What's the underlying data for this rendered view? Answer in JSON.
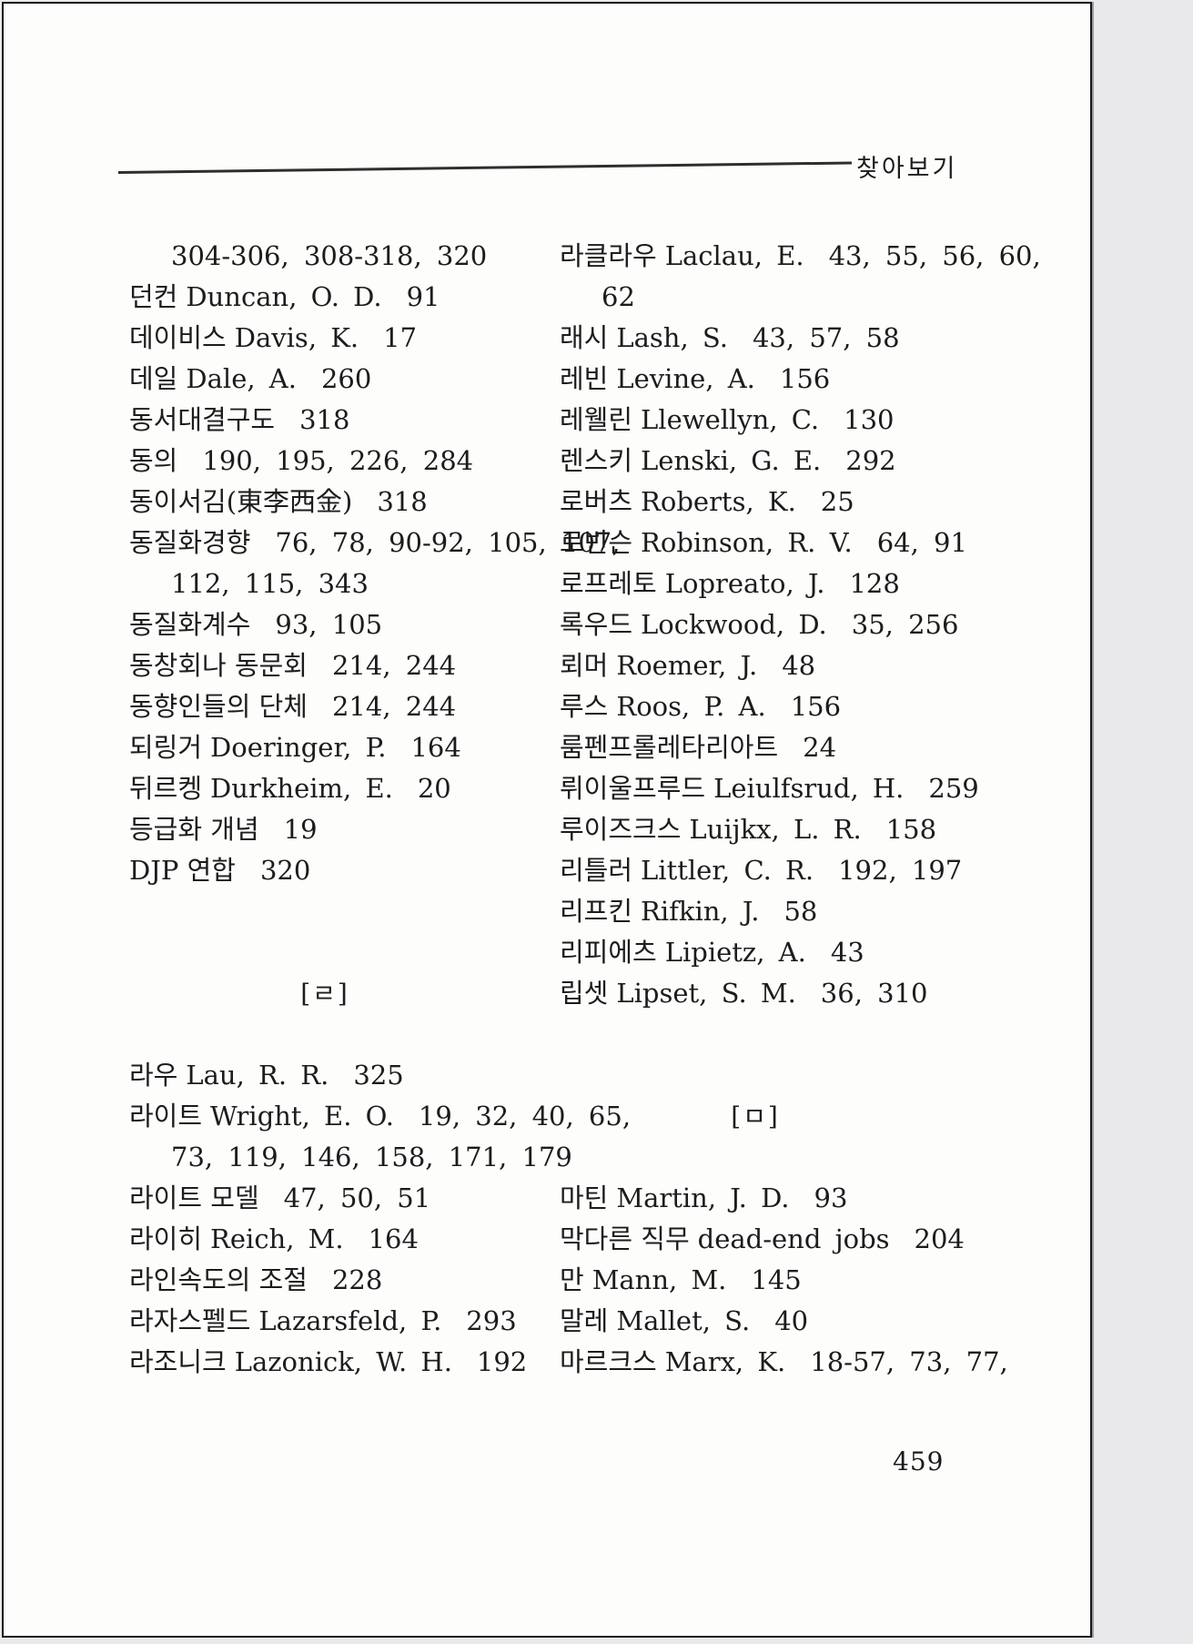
{
  "header": {
    "title": "찾아보기"
  },
  "page_number": "459",
  "columns": {
    "left": [
      {
        "type": "entry",
        "indent": true,
        "pages": "304-306, 308-318, 320"
      },
      {
        "type": "entry",
        "term": "던컨",
        "latin": "Duncan, O. D.",
        "pages": "91"
      },
      {
        "type": "entry",
        "term": "데이비스",
        "latin": "Davis, K.",
        "pages": "17"
      },
      {
        "type": "entry",
        "term": "데일",
        "latin": "Dale, A.",
        "pages": "260"
      },
      {
        "type": "entry",
        "term": "동서대결구도",
        "pages": "318"
      },
      {
        "type": "entry",
        "term": "동의",
        "pages": "190, 195, 226, 284"
      },
      {
        "type": "entry",
        "term": "동이서김(東李西金)",
        "pages": "318"
      },
      {
        "type": "entry",
        "term": "동질화경향",
        "pages": "76, 78, 90-92, 105, 107,"
      },
      {
        "type": "entry",
        "indent": true,
        "pages": "112, 115, 343"
      },
      {
        "type": "entry",
        "term": "동질화계수",
        "pages": "93, 105"
      },
      {
        "type": "entry",
        "term": "동창회나 동문회",
        "pages": "214, 244"
      },
      {
        "type": "entry",
        "term": "동향인들의 단체",
        "pages": "214, 244"
      },
      {
        "type": "entry",
        "term": "되링거",
        "latin": "Doeringer, P.",
        "pages": "164"
      },
      {
        "type": "entry",
        "term": "뒤르켕",
        "latin": "Durkheim, E.",
        "pages": "20"
      },
      {
        "type": "entry",
        "term": "등급화 개념",
        "pages": "19"
      },
      {
        "type": "entry",
        "term": "DJP 연합",
        "pages": "320"
      },
      {
        "type": "blank"
      },
      {
        "type": "blank"
      },
      {
        "type": "section",
        "label": "[ㄹ]"
      },
      {
        "type": "blank"
      },
      {
        "type": "entry",
        "term": "라우",
        "latin": "Lau, R. R.",
        "pages": "325"
      },
      {
        "type": "entry",
        "term": "라이트",
        "latin": "Wright, E. O.",
        "pages": "19, 32, 40, 65,"
      },
      {
        "type": "entry",
        "indent": true,
        "pages": "73, 119, 146, 158, 171, 179"
      },
      {
        "type": "entry",
        "term": "라이트 모델",
        "pages": "47, 50, 51"
      },
      {
        "type": "entry",
        "term": "라이히",
        "latin": "Reich, M.",
        "pages": "164"
      },
      {
        "type": "entry",
        "term": "라인속도의 조절",
        "pages": "228"
      },
      {
        "type": "entry",
        "term": "라자스펠드",
        "latin": "Lazarsfeld, P.",
        "pages": "293"
      },
      {
        "type": "entry",
        "term": "라조니크",
        "latin": "Lazonick, W. H.",
        "pages": "192"
      }
    ],
    "right": [
      {
        "type": "entry",
        "term": "라클라우",
        "latin": "Laclau, E.",
        "pages": "43, 55, 56, 60,"
      },
      {
        "type": "entry",
        "indent": true,
        "pages": "62"
      },
      {
        "type": "entry",
        "term": "래시",
        "latin": "Lash, S.",
        "pages": "43, 57, 58"
      },
      {
        "type": "entry",
        "term": "레빈",
        "latin": "Levine, A.",
        "pages": "156"
      },
      {
        "type": "entry",
        "term": "레웰린",
        "latin": "Llewellyn, C.",
        "pages": "130"
      },
      {
        "type": "entry",
        "term": "렌스키",
        "latin": "Lenski, G. E.",
        "pages": "292"
      },
      {
        "type": "entry",
        "term": "로버츠",
        "latin": "Roberts, K.",
        "pages": "25"
      },
      {
        "type": "entry",
        "term": "로빈슨",
        "latin": "Robinson, R. V.",
        "pages": "64, 91"
      },
      {
        "type": "entry",
        "term": "로프레토",
        "latin": "Lopreato, J.",
        "pages": "128"
      },
      {
        "type": "entry",
        "term": "록우드",
        "latin": "Lockwood, D.",
        "pages": "35, 256"
      },
      {
        "type": "entry",
        "term": "뢰머",
        "latin": "Roemer, J.",
        "pages": "48"
      },
      {
        "type": "entry",
        "term": "루스",
        "latin": "Roos, P. A.",
        "pages": "156"
      },
      {
        "type": "entry",
        "term": "룸펜프롤레타리아트",
        "pages": "24"
      },
      {
        "type": "entry",
        "term": "뤼이울프루드",
        "latin": "Leiulfsrud, H.",
        "pages": "259"
      },
      {
        "type": "entry",
        "term": "루이즈크스",
        "latin": "Luijkx, L. R.",
        "pages": "158"
      },
      {
        "type": "entry",
        "term": "리틀러",
        "latin": "Littler, C. R.",
        "pages": "192, 197"
      },
      {
        "type": "entry",
        "term": "리프킨",
        "latin": "Rifkin, J.",
        "pages": "58"
      },
      {
        "type": "entry",
        "term": "리피에츠",
        "latin": "Lipietz, A.",
        "pages": "43"
      },
      {
        "type": "entry",
        "term": "립셋",
        "latin": "Lipset, S. M.",
        "pages": "36, 310"
      },
      {
        "type": "blank"
      },
      {
        "type": "blank"
      },
      {
        "type": "section",
        "label": "[ㅁ]"
      },
      {
        "type": "blank"
      },
      {
        "type": "entry",
        "term": "마틴",
        "latin": "Martin, J. D.",
        "pages": "93"
      },
      {
        "type": "entry",
        "term": "막다른 직무",
        "latin": "dead-end jobs",
        "pages": "204"
      },
      {
        "type": "entry",
        "term": "만",
        "latin": "Mann, M.",
        "pages": "145"
      },
      {
        "type": "entry",
        "term": "말레",
        "latin": "Mallet, S.",
        "pages": "40"
      },
      {
        "type": "entry",
        "term": "마르크스",
        "latin": "Marx, K.",
        "pages": "18-57, 73, 77,"
      }
    ]
  }
}
